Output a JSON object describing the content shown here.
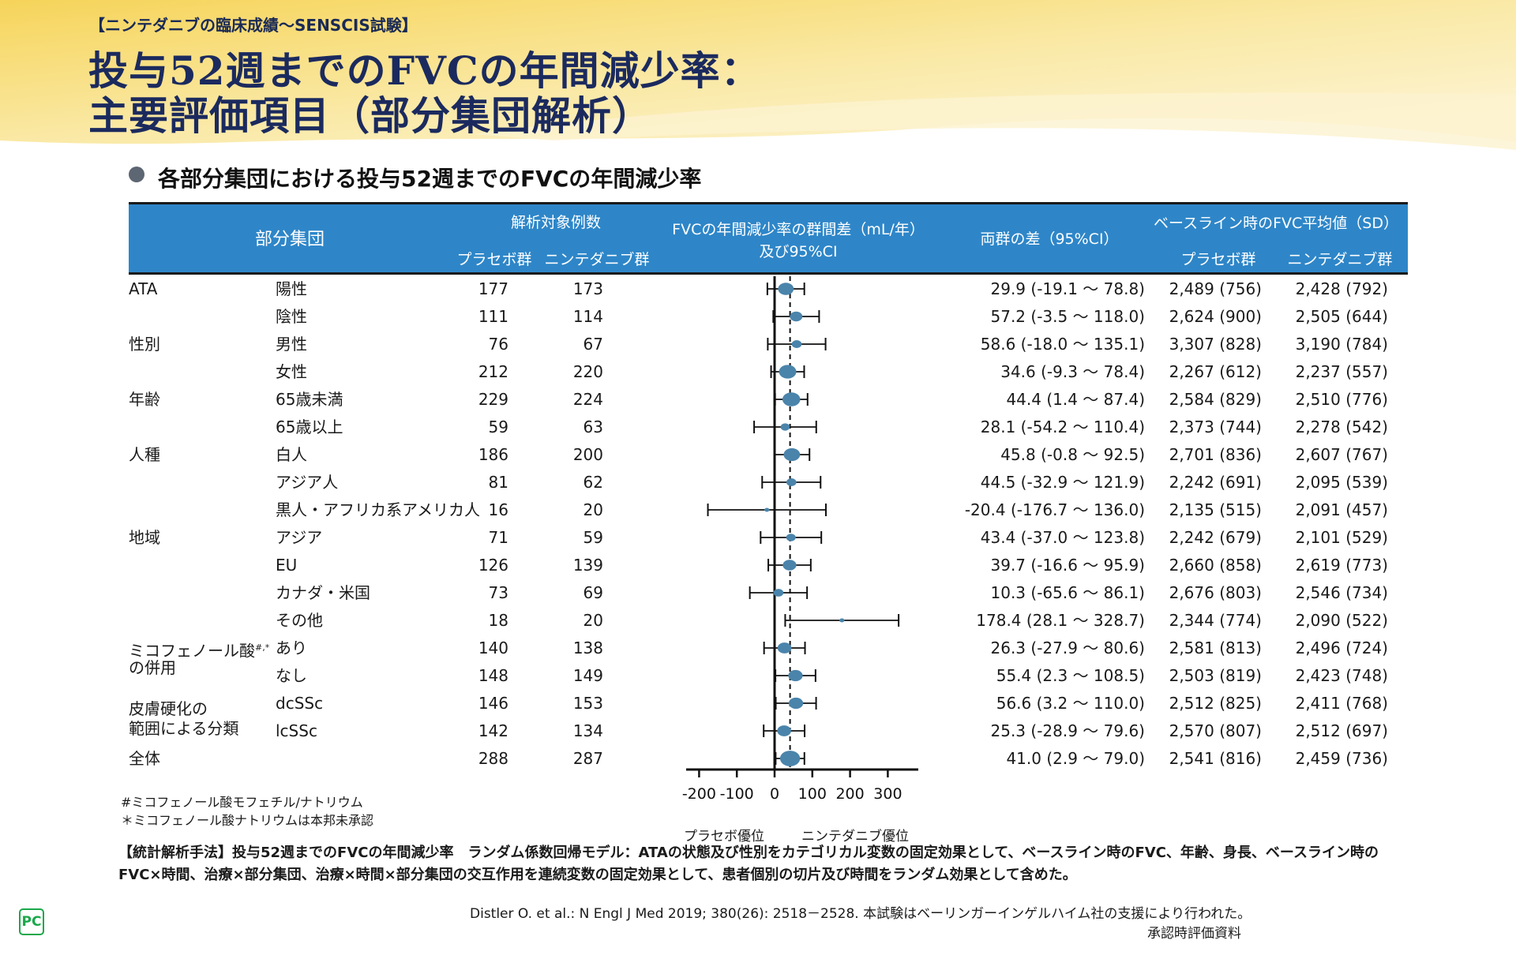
{
  "header": {
    "kicker": "【ニンテダニブの臨床成績～SENSCIS試験】",
    "title_line1": "投与52週までのFVCの年間減少率：",
    "title_line2": "主要評価項目（部分集団解析）",
    "bullet_heading": "各部分集団における投与52週までのFVCの年間減少率"
  },
  "colors": {
    "header_bg": "#2e86c8",
    "marker": "#4a84ab",
    "title": "#1b2a5e",
    "background_wash": "#f7d96a"
  },
  "table_header": {
    "subgroup": "部分集団",
    "n_analyzed": "解析対象例数",
    "placebo": "プラセボ群",
    "nintedanib": "ニンテダニブ群",
    "forest_line1": "FVCの年間減少率の群間差（mL/年）",
    "forest_line2": "及び95%CI",
    "diff": "両群の差（95%CI）",
    "baseline": "ベースライン時のFVC平均値（SD）",
    "baseline_placebo": "プラセボ群",
    "baseline_nintedanib": "ニンテダニブ群"
  },
  "groups": [
    {
      "label": "ATA",
      "row": 0
    },
    {
      "label": "性別",
      "row": 2
    },
    {
      "label": "年齢",
      "row": 4
    },
    {
      "label": "人種",
      "row": 6
    },
    {
      "label": "地域",
      "row": 9
    },
    {
      "label": "ミコフェノール酸#,*",
      "row": 13
    },
    {
      "label": "の併用",
      "row": 13.7
    },
    {
      "label": "皮膚硬化の",
      "row": 15.2
    },
    {
      "label": "範囲による分類",
      "row": 15.9
    },
    {
      "label": "全体",
      "row": 17
    }
  ],
  "chart_data": {
    "type": "forest",
    "xlabel_left": "プラセボ優位",
    "xlabel_right": "ニンテダニブ優位",
    "xlim": [
      -230,
      380
    ],
    "xticks": [
      -200,
      -100,
      0,
      100,
      200,
      300
    ],
    "xtick_labels": [
      "-200",
      "-100",
      "0",
      "100",
      "200",
      "300"
    ],
    "reference_line": 0,
    "overall_line": 41.0,
    "rows": [
      {
        "subgroup": "陽性",
        "n_placebo": "177",
        "n_nintedanib": "173",
        "diff": 29.9,
        "lo": -19.1,
        "hi": 78.8,
        "diff_text": "29.9 (-19.1 ～ 78.8)",
        "bl_placebo": "2,489 (756)",
        "bl_nintedanib": "2,428 (792)"
      },
      {
        "subgroup": "陰性",
        "n_placebo": "111",
        "n_nintedanib": "114",
        "diff": 57.2,
        "lo": -3.5,
        "hi": 118.0,
        "diff_text": "57.2 (-3.5 ～ 118.0)",
        "bl_placebo": "2,624 (900)",
        "bl_nintedanib": "2,505 (644)"
      },
      {
        "subgroup": "男性",
        "n_placebo": "76",
        "n_nintedanib": "67",
        "diff": 58.6,
        "lo": -18.0,
        "hi": 135.1,
        "diff_text": "58.6 (-18.0 ～ 135.1)",
        "bl_placebo": "3,307 (828)",
        "bl_nintedanib": "3,190 (784)"
      },
      {
        "subgroup": "女性",
        "n_placebo": "212",
        "n_nintedanib": "220",
        "diff": 34.6,
        "lo": -9.3,
        "hi": 78.4,
        "diff_text": "34.6 (-9.3 ～ 78.4)",
        "bl_placebo": "2,267 (612)",
        "bl_nintedanib": "2,237 (557)"
      },
      {
        "subgroup": "65歳未満",
        "n_placebo": "229",
        "n_nintedanib": "224",
        "diff": 44.4,
        "lo": 1.4,
        "hi": 87.4,
        "diff_text": "44.4 (1.4 ～ 87.4)",
        "bl_placebo": "2,584 (829)",
        "bl_nintedanib": "2,510 (776)"
      },
      {
        "subgroup": "65歳以上",
        "n_placebo": "59",
        "n_nintedanib": "63",
        "diff": 28.1,
        "lo": -54.2,
        "hi": 110.4,
        "diff_text": "28.1 (-54.2 ～ 110.4)",
        "bl_placebo": "2,373 (744)",
        "bl_nintedanib": "2,278 (542)"
      },
      {
        "subgroup": "白人",
        "n_placebo": "186",
        "n_nintedanib": "200",
        "diff": 45.8,
        "lo": -0.8,
        "hi": 92.5,
        "diff_text": "45.8 (-0.8 ～ 92.5)",
        "bl_placebo": "2,701 (836)",
        "bl_nintedanib": "2,607 (767)"
      },
      {
        "subgroup": "アジア人",
        "n_placebo": "81",
        "n_nintedanib": "62",
        "diff": 44.5,
        "lo": -32.9,
        "hi": 121.9,
        "diff_text": "44.5 (-32.9 ～ 121.9)",
        "bl_placebo": "2,242 (691)",
        "bl_nintedanib": "2,095 (539)"
      },
      {
        "subgroup": "黒人・アフリカ系アメリカ人",
        "n_placebo": "16",
        "n_nintedanib": "20",
        "diff": -20.4,
        "lo": -176.7,
        "hi": 136.0,
        "diff_text": "-20.4 (-176.7 ～ 136.0)",
        "bl_placebo": "2,135 (515)",
        "bl_nintedanib": "2,091 (457)"
      },
      {
        "subgroup": "アジア",
        "n_placebo": "71",
        "n_nintedanib": "59",
        "diff": 43.4,
        "lo": -37.0,
        "hi": 123.8,
        "diff_text": "43.4 (-37.0 ～ 123.8)",
        "bl_placebo": "2,242 (679)",
        "bl_nintedanib": "2,101 (529)"
      },
      {
        "subgroup": "EU",
        "n_placebo": "126",
        "n_nintedanib": "139",
        "diff": 39.7,
        "lo": -16.6,
        "hi": 95.9,
        "diff_text": "39.7 (-16.6 ～ 95.9)",
        "bl_placebo": "2,660 (858)",
        "bl_nintedanib": "2,619 (773)"
      },
      {
        "subgroup": "カナダ・米国",
        "n_placebo": "73",
        "n_nintedanib": "69",
        "diff": 10.3,
        "lo": -65.6,
        "hi": 86.1,
        "diff_text": "10.3 (-65.6 ～ 86.1)",
        "bl_placebo": "2,676 (803)",
        "bl_nintedanib": "2,546 (734)"
      },
      {
        "subgroup": "その他",
        "n_placebo": "18",
        "n_nintedanib": "20",
        "diff": 178.4,
        "lo": 28.1,
        "hi": 328.7,
        "diff_text": "178.4 (28.1 ～ 328.7)",
        "bl_placebo": "2,344 (774)",
        "bl_nintedanib": "2,090 (522)"
      },
      {
        "subgroup": "あり",
        "n_placebo": "140",
        "n_nintedanib": "138",
        "diff": 26.3,
        "lo": -27.9,
        "hi": 80.6,
        "diff_text": "26.3 (-27.9 ～ 80.6)",
        "bl_placebo": "2,581 (813)",
        "bl_nintedanib": "2,496 (724)"
      },
      {
        "subgroup": "なし",
        "n_placebo": "148",
        "n_nintedanib": "149",
        "diff": 55.4,
        "lo": 2.3,
        "hi": 108.5,
        "diff_text": "55.4 (2.3 ～ 108.5)",
        "bl_placebo": "2,503 (819)",
        "bl_nintedanib": "2,423 (748)"
      },
      {
        "subgroup": "dcSSc",
        "n_placebo": "146",
        "n_nintedanib": "153",
        "diff": 56.6,
        "lo": 3.2,
        "hi": 110.0,
        "diff_text": "56.6 (3.2 ～ 110.0)",
        "bl_placebo": "2,512 (825)",
        "bl_nintedanib": "2,411 (768)"
      },
      {
        "subgroup": "lcSSc",
        "n_placebo": "142",
        "n_nintedanib": "134",
        "diff": 25.3,
        "lo": -28.9,
        "hi": 79.6,
        "diff_text": "25.3 (-28.9 ～ 79.6)",
        "bl_placebo": "2,570 (807)",
        "bl_nintedanib": "2,512 (697)"
      },
      {
        "subgroup": "",
        "n_placebo": "288",
        "n_nintedanib": "287",
        "diff": 41.0,
        "lo": 2.9,
        "hi": 79.0,
        "diff_text": "41.0 (2.9 ～ 79.0)",
        "bl_placebo": "2,541 (816)",
        "bl_nintedanib": "2,459 (736)"
      }
    ]
  },
  "footnotes": [
    "#ミコフェノール酸モフェチル/ナトリウム",
    "＊ミコフェノール酸ナトリウムは本邦未承認"
  ],
  "stats_method": {
    "line1": "【統計解析手法】投与52週までのFVCの年間減少率　ランダム係数回帰モデル：ATAの状態及び性別をカテゴリカル変数の固定効果として、ベースライン時のFVC、年齢、身長、ベースライン時の",
    "line2": "FVC×時間、治療×部分集団、治療×時間×部分集団の交互作用を連続変数の固定効果として、患者個別の切片及び時間をランダム効果として含めた。"
  },
  "citation": "Distler O. et al.: N Engl J Med 2019; 380(26): 2518－2528. 本試験はベーリンガーインゲルハイム社の支援により行われた。",
  "approval_note": "承認時評価資料",
  "logo_text": "PC"
}
